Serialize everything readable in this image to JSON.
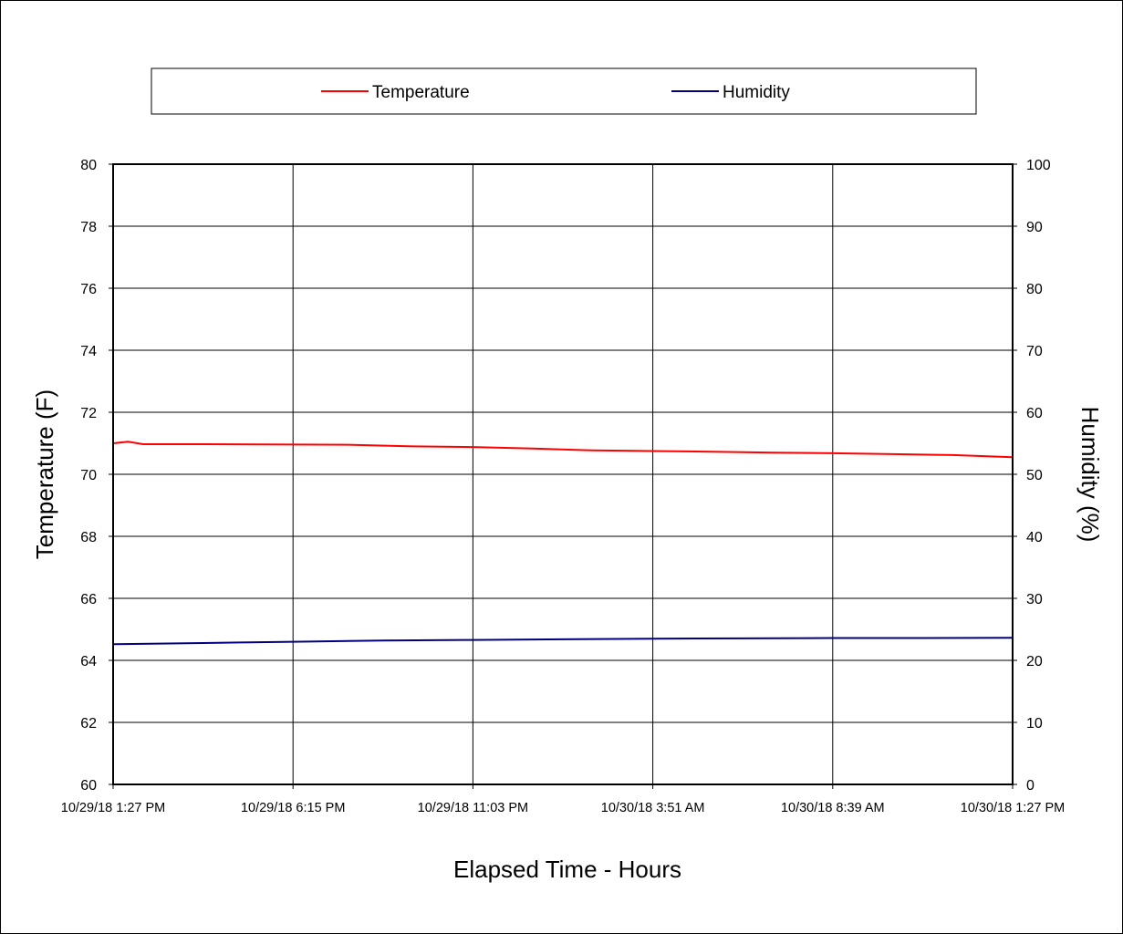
{
  "chart_data": {
    "type": "line",
    "xlabel": "Elapsed Time - Hours",
    "ylabel_left": "Temperature (F)",
    "ylabel_right": "Humidity (%)",
    "x_range": [
      "10/29/18 1:27 PM",
      "10/30/18 1:27 PM"
    ],
    "x_ticks": [
      "10/29/18 1:27 PM",
      "10/29/18 6:15 PM",
      "10/29/18 11:03 PM",
      "10/30/18 3:51 AM",
      "10/30/18 8:39 AM",
      "10/30/18 1:27 PM"
    ],
    "y_left": {
      "min": 60,
      "max": 80,
      "ticks": [
        60,
        62,
        64,
        66,
        68,
        70,
        72,
        74,
        76,
        78,
        80
      ]
    },
    "y_right": {
      "min": 0,
      "max": 100,
      "ticks": [
        0,
        10,
        20,
        30,
        40,
        50,
        60,
        70,
        80,
        90,
        100
      ]
    },
    "grid": true,
    "legend_position": "top",
    "series": [
      {
        "name": "Temperature",
        "axis": "left",
        "color": "#ff0000",
        "points": [
          [
            "10/29/18 1:27 PM",
            71.0
          ],
          [
            "10/29/18 1:51 PM",
            71.05
          ],
          [
            "10/29/18 2:15 PM",
            70.97
          ],
          [
            "10/29/18 3:51 PM",
            70.97
          ],
          [
            "10/29/18 6:15 PM",
            70.96
          ],
          [
            "10/29/18 7:51 PM",
            70.95
          ],
          [
            "10/29/18 9:27 PM",
            70.9
          ],
          [
            "10/29/18 11:03 PM",
            70.88
          ],
          [
            "10/30/18 12:39 AM",
            70.83
          ],
          [
            "10/30/18 2:15 AM",
            70.77
          ],
          [
            "10/30/18 3:51 AM",
            70.75
          ],
          [
            "10/30/18 5:27 AM",
            70.73
          ],
          [
            "10/30/18 7:03 AM",
            70.7
          ],
          [
            "10/30/18 8:39 AM",
            70.68
          ],
          [
            "10/30/18 10:15 AM",
            70.65
          ],
          [
            "10/30/18 11:51 AM",
            70.62
          ],
          [
            "10/30/18 1:27 PM",
            70.55
          ]
        ]
      },
      {
        "name": "Humidity",
        "axis": "right",
        "color": "#000080",
        "points": [
          [
            "10/29/18 1:27 PM",
            22.6
          ],
          [
            "10/29/18 3:51 PM",
            22.8
          ],
          [
            "10/29/18 6:15 PM",
            23.0
          ],
          [
            "10/29/18 8:39 PM",
            23.2
          ],
          [
            "10/29/18 11:03 PM",
            23.3
          ],
          [
            "10/30/18 1:27 AM",
            23.4
          ],
          [
            "10/30/18 3:51 AM",
            23.5
          ],
          [
            "10/30/18 6:15 AM",
            23.55
          ],
          [
            "10/30/18 8:39 AM",
            23.6
          ],
          [
            "10/30/18 11:03 AM",
            23.6
          ],
          [
            "10/30/18 1:27 PM",
            23.65
          ]
        ]
      }
    ]
  }
}
